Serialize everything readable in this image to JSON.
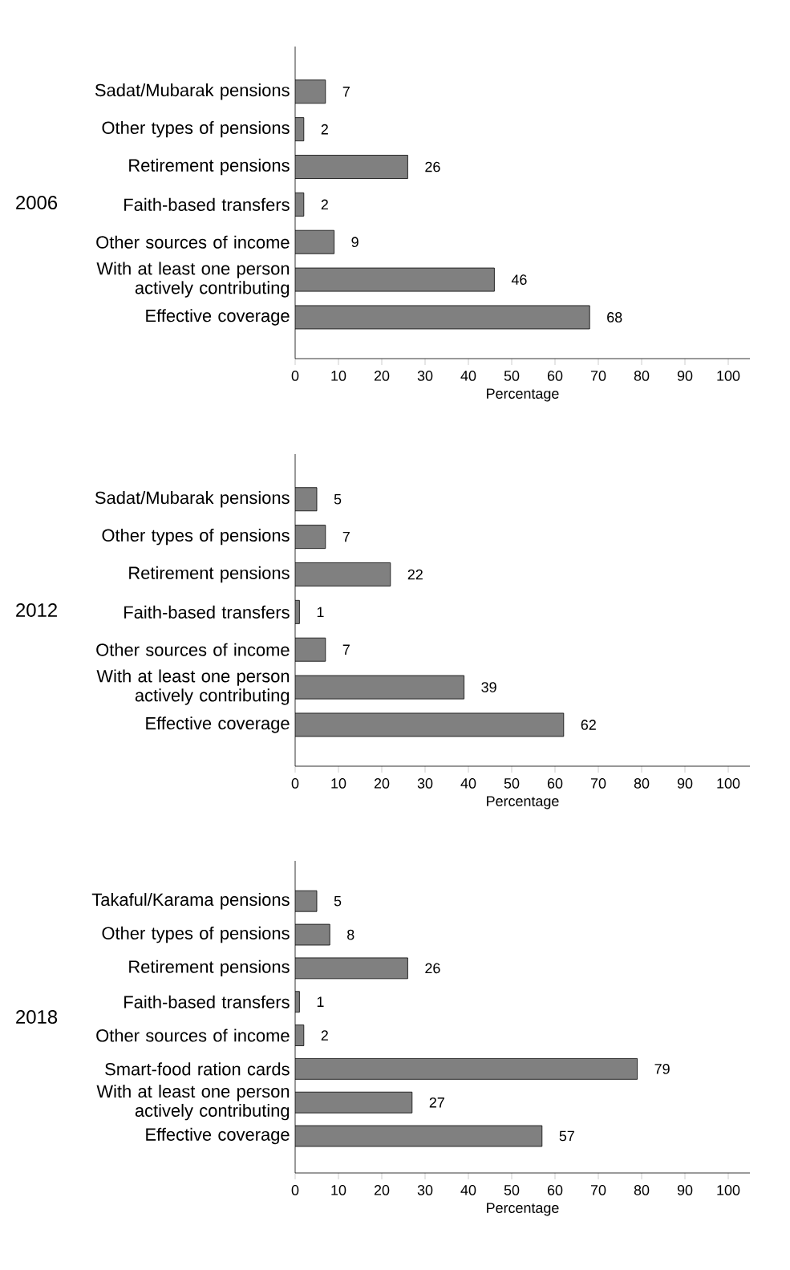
{
  "chart_data": [
    {
      "type": "bar",
      "orientation": "horizontal",
      "ylabel": "2006",
      "xlabel": "Percentage",
      "categories": [
        "Sadat/Mubarak pensions",
        "Other types of pensions",
        "Retirement pensions",
        "Faith-based transfers",
        "Other sources of income",
        "With at least one person actively contributing",
        "Effective coverage"
      ],
      "values": [
        7,
        2,
        26,
        2,
        9,
        46,
        68
      ],
      "color": "#808080",
      "data_labels": true,
      "xlim": [
        0,
        105
      ],
      "xticks": [
        0,
        10,
        20,
        30,
        40,
        50,
        60,
        70,
        80,
        90,
        100
      ]
    },
    {
      "type": "bar",
      "orientation": "horizontal",
      "ylabel": "2012",
      "xlabel": "Percentage",
      "categories": [
        "Sadat/Mubarak pensions",
        "Other types of pensions",
        "Retirement pensions",
        "Faith-based transfers",
        "Other sources of income",
        "With at least one person actively contributing",
        "Effective coverage"
      ],
      "values": [
        5,
        7,
        22,
        1,
        7,
        39,
        62
      ],
      "color": "#808080",
      "data_labels": true,
      "xlim": [
        0,
        105
      ],
      "xticks": [
        0,
        10,
        20,
        30,
        40,
        50,
        60,
        70,
        80,
        90,
        100
      ]
    },
    {
      "type": "bar",
      "orientation": "horizontal",
      "ylabel": "2018",
      "xlabel": "Percentage",
      "categories": [
        "Takaful/Karama pensions",
        "Other types of pensions",
        "Retirement pensions",
        "Faith-based transfers",
        "Other sources of income",
        "Smart-food ration cards",
        "With at least one person actively contributing",
        "Effective coverage"
      ],
      "values": [
        5,
        8,
        26,
        1,
        2,
        79,
        27,
        57
      ],
      "color": "#808080",
      "data_labels": true,
      "xlim": [
        0,
        105
      ],
      "xticks": [
        0,
        10,
        20,
        30,
        40,
        50,
        60,
        70,
        80,
        90,
        100
      ]
    }
  ]
}
